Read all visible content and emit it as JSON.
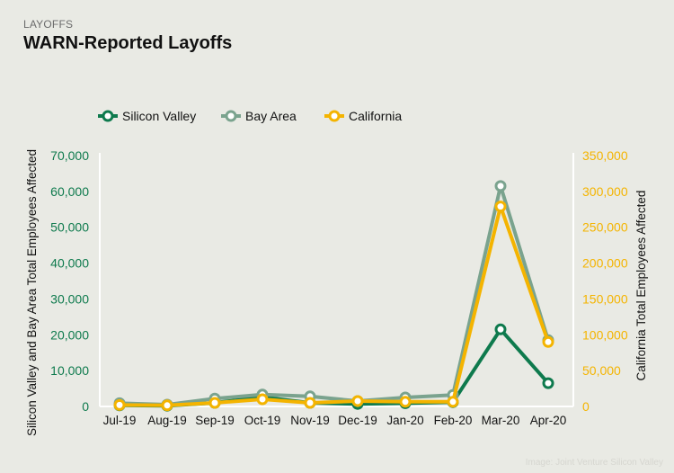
{
  "header": {
    "eyebrow": "LAYOFFS",
    "title": "WARN-Reported Layoffs"
  },
  "credit": "Image: Joint Venture Silicon Valley",
  "colors": {
    "silicon_valley": "#0e7a4d",
    "bay_area": "#7aa38e",
    "california": "#f4b400",
    "background": "#e9eae4",
    "gridline": "#ffffff"
  },
  "chart_data": {
    "type": "line",
    "title": "WARN-Reported Layoffs",
    "categories": [
      "Jul-19",
      "Aug-19",
      "Sep-19",
      "Oct-19",
      "Nov-19",
      "Dec-19",
      "Jan-20",
      "Feb-20",
      "Mar-20",
      "Apr-20"
    ],
    "ylabel": "Silicon Valley and Bay Area Total Employees Affected",
    "y2label": "California Total Employees Affected",
    "ylim": [
      0,
      70000
    ],
    "y2lim": [
      0,
      350000
    ],
    "yticks": [
      "0",
      "10,000",
      "20,000",
      "30,000",
      "40,000",
      "50,000",
      "60,000",
      "70,000"
    ],
    "y2ticks": [
      "0",
      "50,000",
      "100,000",
      "150,000",
      "200,000",
      "250,000",
      "300,000",
      "350,000"
    ],
    "legend_position": "top-left",
    "grid": false,
    "series": [
      {
        "name": "Silicon Valley",
        "axis": "left",
        "color": "#0e7a4d",
        "values": [
          300,
          200,
          1000,
          2600,
          1000,
          700,
          900,
          1200,
          21500,
          6500
        ]
      },
      {
        "name": "Bay Area",
        "axis": "left",
        "color": "#7aa38e",
        "values": [
          900,
          500,
          2200,
          3300,
          2800,
          1500,
          2500,
          3200,
          61500,
          18500
        ]
      },
      {
        "name": "California",
        "axis": "right",
        "color": "#f4b400",
        "values": [
          2000,
          1500,
          5000,
          10000,
          5000,
          7500,
          6500,
          6500,
          279000,
          90000
        ]
      }
    ]
  }
}
